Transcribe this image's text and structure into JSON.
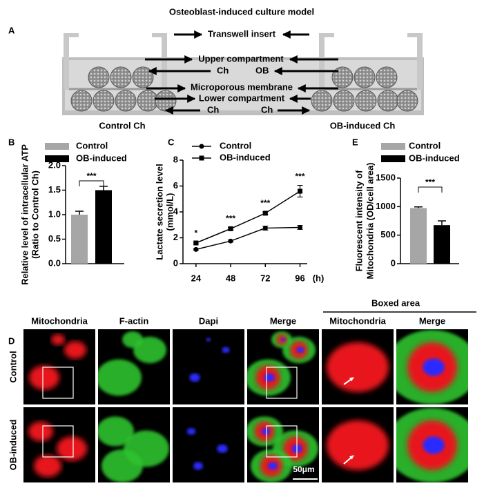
{
  "figure_title": "Osteoblast-induced culture model",
  "panel_a": {
    "panel_label": "A",
    "labels": [
      "Transwell insert",
      "Upper compartment",
      "Ch",
      "OB",
      "Microporous membrane",
      "Lower compartment",
      "Ch",
      "Ch"
    ],
    "captions": [
      "Control Ch",
      "OB-induced Ch"
    ]
  },
  "chart_data": [
    {
      "type": "bar",
      "panel_label": "B",
      "y_label": [
        "Relative level of  intracellular ATP",
        "(Ratio to Control Ch)"
      ],
      "categories": [
        "Control",
        "OB-induced"
      ],
      "colors": [
        "#a6a6a6",
        "#000000"
      ],
      "values": [
        1.0,
        1.5
      ],
      "errors": [
        0.07,
        0.08
      ],
      "ylim": [
        0,
        2
      ],
      "yticks": [
        {
          "value": 0,
          "label": "0.0"
        },
        {
          "value": 0.5,
          "label": "0.5"
        },
        {
          "value": 1,
          "label": "1.0"
        },
        {
          "value": 1.5,
          "label": "1.5"
        },
        {
          "value": 2,
          "label": "2.0"
        }
      ],
      "annotations": [
        "***"
      ]
    },
    {
      "type": "line",
      "panel_label": "C",
      "y_label": [
        "Lactate secretion level",
        "(mmol/L)"
      ],
      "x_label": "(h)",
      "x": [
        24,
        48,
        72,
        96
      ],
      "xlim": [
        15,
        101
      ],
      "xticks": [
        24,
        48,
        72,
        96
      ],
      "ylim": [
        0,
        8
      ],
      "yticks": [
        0,
        2,
        4,
        6,
        8
      ],
      "series": [
        {
          "name": "Control",
          "color": "#000000",
          "marker": "circle",
          "values": [
            1.1,
            1.75,
            2.75,
            2.8
          ],
          "errors": [
            0.05,
            0.08,
            0.15,
            0.15
          ]
        },
        {
          "name": "OB-induced",
          "color": "#000000",
          "marker": "square",
          "values": [
            1.6,
            2.7,
            3.9,
            5.6
          ],
          "errors": [
            0.08,
            0.1,
            0.1,
            0.45
          ]
        }
      ],
      "annotations": [
        "*",
        "***",
        "***",
        "***"
      ]
    },
    {
      "type": "bar",
      "panel_label": "E",
      "y_label": [
        "Fluorescent intensity of",
        "Mitochondria (OD/cell area)"
      ],
      "categories": [
        "Control",
        "OB-induced"
      ],
      "colors": [
        "#a6a6a6",
        "#000000"
      ],
      "values": [
        975,
        675
      ],
      "errors": [
        20,
        75
      ],
      "ylim": [
        0,
        1500
      ],
      "yticks": [
        0,
        500,
        1000,
        1500
      ],
      "annotations": [
        "***"
      ]
    }
  ],
  "panel_d": {
    "panel_label": "D",
    "boxed_area": "Boxed area",
    "columns": [
      "Mitochondria",
      "F-actin",
      "Dapi",
      "Merge",
      "Mitochondria",
      "Merge"
    ],
    "rows": [
      "Control",
      "OB-induced"
    ],
    "scale_bar": "50μm"
  }
}
